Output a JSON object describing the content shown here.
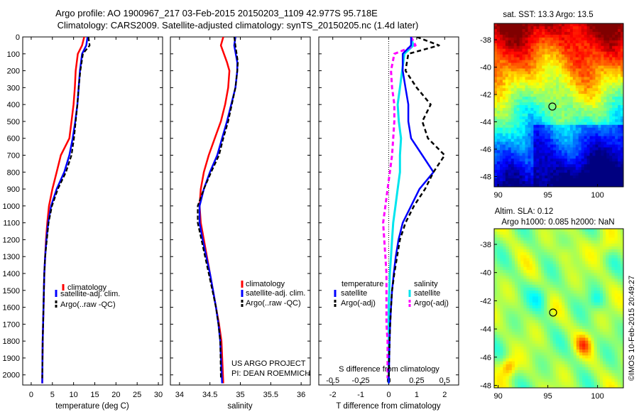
{
  "header": {
    "title_line1": "Argo profile: AO 1900967_217 03-Feb-2015 20150203_1109 42.977S 95.718E",
    "title_line2": "Climatology: CARS2009. Satellite-adjusted climatology: synTS_20150205.nc (1.4d later)"
  },
  "panel_temp": {
    "xlabel": "temperature (deg C)",
    "xlim": [
      -2,
      31
    ],
    "xticks": [
      "0",
      "5",
      "10",
      "15",
      "20",
      "25",
      "30"
    ],
    "xtick_values": [
      0,
      5,
      10,
      15,
      20,
      25,
      30
    ],
    "legend": [
      "climatology",
      "satellite-adj. clim.",
      "Argo(..raw -QC)"
    ]
  },
  "panel_sal": {
    "xlabel": "salinity",
    "xlim": [
      33.85,
      36.15
    ],
    "xticks": [
      "34",
      "34.5",
      "35",
      "35.5",
      "36"
    ],
    "xtick_values": [
      34,
      34.5,
      35,
      35.5,
      36
    ],
    "legend": [
      "climatology",
      "satellite-adj. clim.",
      "Argo(..raw -QC)"
    ],
    "project_line1": "US ARGO PROJECT",
    "project_line2": "PI: DEAN ROEMMICH"
  },
  "panel_diff": {
    "xlabel": "T difference from climatology",
    "top_label": "S difference from climatology",
    "xlim": [
      -2.5,
      2.5
    ],
    "xticks": [
      "-2",
      "-1",
      "0",
      "1",
      "2"
    ],
    "xtick_values": [
      -2,
      -1,
      0,
      1,
      2
    ],
    "sticks": [
      "-0.5",
      "-0.25",
      "0",
      "0.25",
      "0.5"
    ],
    "stick_values": [
      -0.5,
      -0.25,
      0,
      0.25,
      0.5
    ],
    "legend_temperature_title": "temperature",
    "legend_salinity_title": "salinity",
    "legend_items": [
      "satellite",
      "Argo(-adj)",
      "satellite",
      "Argo(-adj)"
    ]
  },
  "depth_axis": {
    "ylim": [
      0,
      2060
    ],
    "ticks": [
      "0",
      "100",
      "200",
      "300",
      "400",
      "500",
      "600",
      "700",
      "800",
      "900",
      "1000",
      "1100",
      "1200",
      "1300",
      "1400",
      "1500",
      "1600",
      "1700",
      "1800",
      "1900",
      "2000"
    ]
  },
  "sst_map": {
    "title": "sat. SST: 13.3 Argo: 13.5",
    "xticks": [
      "90",
      "95",
      "100"
    ],
    "yticks": [
      "-38",
      "-40",
      "-42",
      "-44",
      "-46",
      "-48"
    ]
  },
  "sla_map": {
    "title_line1": "Altim. SLA: 0.12",
    "title_line2": "Argo h1000: 0.085 h2000: NaN",
    "xticks": [
      "90",
      "95",
      "100"
    ],
    "yticks": [
      "-38",
      "-40",
      "-42",
      "-44",
      "-46",
      "-48"
    ]
  },
  "credit": "©IMOS 10-Feb-2015 20:49:27",
  "colors": {
    "climatology": "#ff0000",
    "satellite": "#0000ff",
    "argo": "#000000",
    "sal_satellite": "#00e5ee",
    "sal_argo": "#ff00ff"
  },
  "chart_data": [
    {
      "type": "line",
      "xlabel": "temperature (deg C)",
      "ylim": [
        0,
        2060
      ],
      "xlim": [
        -2,
        31
      ],
      "y_reversed": true,
      "series": [
        {
          "name": "climatology",
          "x": [
            12.5,
            12.0,
            11.0,
            10.5,
            10.3,
            10.0,
            9.5,
            9.0,
            7.0,
            6.0,
            5.0,
            4.2,
            3.8,
            3.5,
            3.3,
            3.1,
            3.0,
            2.9,
            2.8,
            2.7,
            2.6
          ],
          "y": [
            0,
            50,
            100,
            200,
            300,
            400,
            500,
            600,
            700,
            800,
            900,
            1000,
            1100,
            1200,
            1300,
            1400,
            1500,
            1600,
            1700,
            1800,
            2050
          ]
        },
        {
          "name": "satellite-adj. clim.",
          "x": [
            13.3,
            13.0,
            12.0,
            11.5,
            11.2,
            10.9,
            10.4,
            9.8,
            9.0,
            7.8,
            6.0,
            4.7,
            4.0,
            3.6,
            3.3,
            3.1,
            3.0,
            2.9,
            2.8,
            2.7,
            2.6
          ],
          "y": [
            0,
            50,
            100,
            200,
            300,
            400,
            500,
            600,
            700,
            800,
            900,
            1000,
            1100,
            1200,
            1300,
            1400,
            1500,
            1600,
            1700,
            1800,
            2050
          ]
        },
        {
          "name": "Argo(..raw -QC)",
          "x": [
            13.5,
            13.8,
            12.2,
            11.6,
            11.2,
            10.9,
            10.5,
            10.1,
            9.5,
            8.2,
            6.3,
            4.9,
            4.1,
            3.7,
            3.3,
            3.1,
            3.0,
            2.9,
            2.8,
            2.7,
            2.6
          ],
          "y": [
            0,
            50,
            100,
            200,
            300,
            400,
            500,
            600,
            700,
            800,
            900,
            1000,
            1100,
            1200,
            1300,
            1400,
            1500,
            1600,
            1700,
            1800,
            2020
          ]
        }
      ]
    },
    {
      "type": "line",
      "xlabel": "salinity",
      "ylim": [
        0,
        2060
      ],
      "xlim": [
        33.85,
        36.15
      ],
      "y_reversed": true,
      "series": [
        {
          "name": "climatology",
          "x": [
            34.72,
            34.68,
            34.78,
            34.82,
            34.8,
            34.75,
            34.68,
            34.58,
            34.48,
            34.4,
            34.35,
            34.33,
            34.35,
            34.4,
            34.45,
            34.5,
            34.55,
            34.6,
            34.65,
            34.69,
            34.72
          ],
          "y": [
            0,
            50,
            150,
            200,
            300,
            400,
            500,
            600,
            700,
            800,
            900,
            1000,
            1100,
            1200,
            1300,
            1400,
            1500,
            1600,
            1700,
            1800,
            2050
          ]
        },
        {
          "name": "satellite-adj. clim.",
          "x": [
            34.92,
            34.9,
            34.95,
            34.95,
            34.92,
            34.85,
            34.78,
            34.7,
            34.62,
            34.5,
            34.4,
            34.33,
            34.33,
            34.38,
            34.44,
            34.5,
            34.55,
            34.6,
            34.64,
            34.67,
            34.7
          ],
          "y": [
            0,
            50,
            150,
            200,
            300,
            400,
            500,
            600,
            700,
            800,
            900,
            1000,
            1100,
            1200,
            1300,
            1400,
            1500,
            1600,
            1700,
            1800,
            2050
          ]
        },
        {
          "name": "Argo(..raw -QC)",
          "x": [
            34.9,
            34.92,
            34.96,
            34.95,
            34.92,
            34.86,
            34.8,
            34.72,
            34.65,
            34.52,
            34.4,
            34.3,
            34.3,
            34.36,
            34.42,
            34.48,
            34.54,
            34.6,
            34.64,
            34.67,
            34.68
          ],
          "y": [
            0,
            50,
            150,
            200,
            300,
            400,
            500,
            600,
            700,
            800,
            900,
            1000,
            1100,
            1200,
            1300,
            1400,
            1500,
            1600,
            1700,
            1800,
            2020
          ]
        }
      ]
    },
    {
      "type": "line",
      "xlabel": "T difference from climatology",
      "ylim": [
        0,
        2060
      ],
      "xlim": [
        -2.5,
        2.5
      ],
      "y_reversed": true,
      "series": [
        {
          "name": "satellite",
          "x": [
            0.8,
            0.8,
            0.5,
            0.5,
            0.6,
            0.7,
            0.7,
            0.8,
            1.2,
            1.6,
            1.1,
            0.8,
            0.5,
            0.35,
            0.25,
            0.18,
            0.12,
            0.08,
            0.05,
            0.03,
            0.0
          ],
          "y": [
            0,
            50,
            100,
            200,
            300,
            400,
            500,
            600,
            700,
            800,
            900,
            1000,
            1100,
            1200,
            1300,
            1400,
            1500,
            1600,
            1700,
            1800,
            2050
          ]
        },
        {
          "name": "Argo(-adj)",
          "x": [
            1.0,
            1.8,
            0.7,
            0.6,
            1.0,
            1.5,
            1.2,
            1.4,
            2.0,
            1.6,
            1.3,
            0.9,
            0.6,
            0.4,
            0.3,
            0.2,
            0.12,
            0.08,
            0.05,
            0.03,
            0.0
          ],
          "y": [
            0,
            50,
            100,
            200,
            300,
            400,
            500,
            600,
            700,
            800,
            900,
            1000,
            1100,
            1200,
            1300,
            1400,
            1500,
            1600,
            1700,
            1800,
            2020
          ]
        }
      ]
    },
    {
      "type": "line",
      "xlabel": "S difference from climatology",
      "ylim": [
        0,
        2060
      ],
      "xlim": [
        -0.625,
        0.625
      ],
      "y_reversed": true,
      "series": [
        {
          "name": "satellite",
          "x": [
            0.2,
            0.22,
            0.14,
            0.12,
            0.1,
            0.08,
            0.09,
            0.11,
            0.1,
            0.1,
            0.08,
            0.06,
            0.04,
            0.03,
            0.02,
            0.01,
            0.005,
            0.0,
            0.0,
            0.0,
            0.0
          ],
          "y": [
            0,
            50,
            100,
            200,
            300,
            400,
            500,
            600,
            700,
            800,
            900,
            1000,
            1100,
            1200,
            1300,
            1400,
            1500,
            1600,
            1700,
            1800,
            2050
          ]
        },
        {
          "name": "Argo(-adj)",
          "x": [
            0.2,
            0.24,
            0.05,
            0.02,
            0.03,
            0.05,
            0.05,
            0.04,
            0.03,
            0.01,
            -0.01,
            -0.03,
            -0.05,
            -0.04,
            -0.03,
            -0.02,
            -0.02,
            -0.02,
            -0.02,
            -0.01,
            -0.01
          ],
          "y": [
            0,
            50,
            100,
            200,
            300,
            400,
            500,
            600,
            700,
            800,
            900,
            1000,
            1100,
            1200,
            1300,
            1400,
            1500,
            1600,
            1700,
            1800,
            2020
          ]
        }
      ]
    }
  ]
}
